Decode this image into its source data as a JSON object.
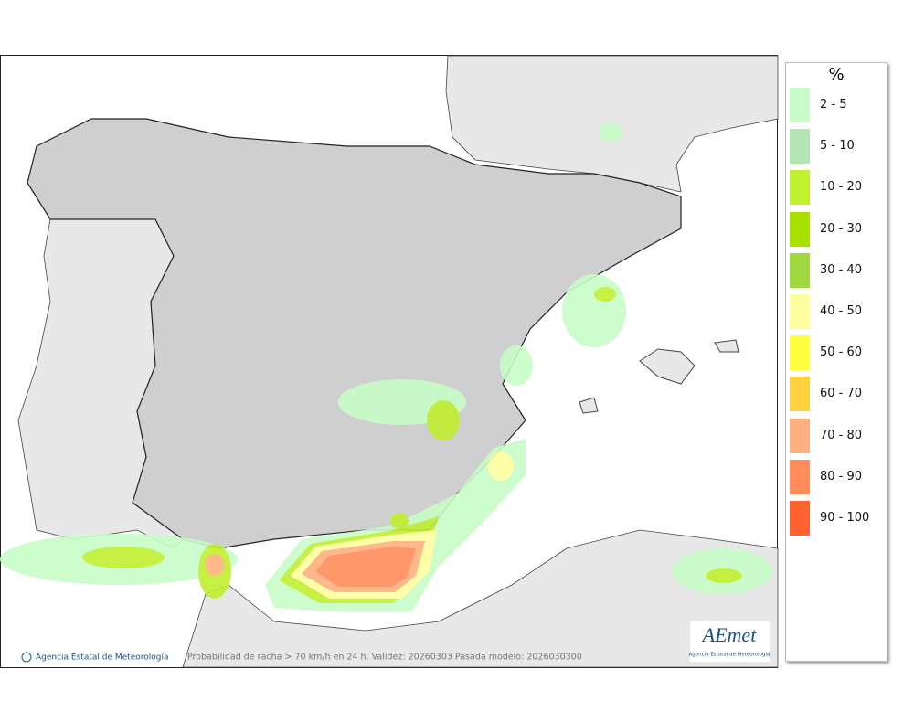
{
  "legend": {
    "title": "%",
    "items": [
      {
        "label": "2 - 5",
        "color": "#c8fcc8"
      },
      {
        "label": "5 - 10",
        "color": "#b4e6b4"
      },
      {
        "label": "10 - 20",
        "color": "#c0f030"
      },
      {
        "label": "20 - 30",
        "color": "#a8e000"
      },
      {
        "label": "30 - 40",
        "color": "#a0d840"
      },
      {
        "label": "40 - 50",
        "color": "#ffffa0"
      },
      {
        "label": "50 - 60",
        "color": "#ffff40"
      },
      {
        "label": "60 - 70",
        "color": "#ffd040"
      },
      {
        "label": "70 - 80",
        "color": "#ffb080"
      },
      {
        "label": "80 - 90",
        "color": "#ff8c5a"
      },
      {
        "label": "90 - 100",
        "color": "#ff6430"
      }
    ]
  },
  "footer": {
    "credit": "Agencia Estatal de Meteorología",
    "caption": "Probabilidad de racha > 70 km/h en 24 h. Validez: 20260303 Pasada modelo: 2026030300"
  },
  "logo": {
    "text": "AEmet",
    "subtitle": "Agencia Estatal de Meteorología"
  }
}
